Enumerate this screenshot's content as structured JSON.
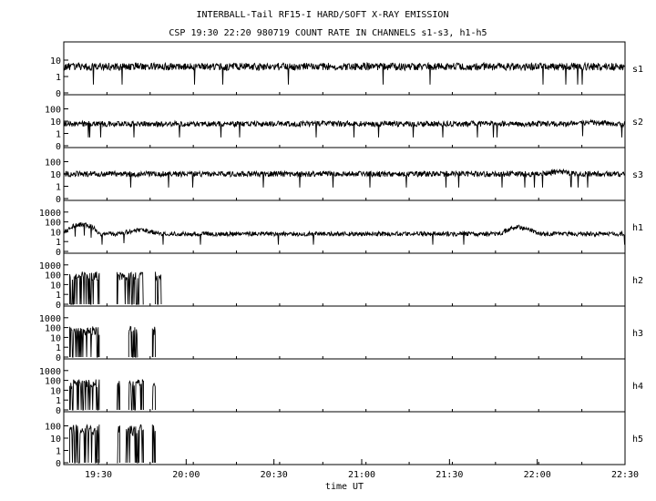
{
  "chart_data": {
    "type": "line",
    "title": "INTERBALL-Tail RF15-I HARD/SOFT X-RAY EMISSION",
    "subtitle": "CSP 19:30 22:20 980719  COUNT RATE IN CHANNELS s1-s3, h1-h5",
    "xlabel": "time UT",
    "x_ticks": [
      "19:30",
      "20:00",
      "20:30",
      "21:00",
      "21:30",
      "22:00",
      "22:30"
    ],
    "x_range_minutes": [
      1160,
      1350
    ],
    "y_scale": "log",
    "legend": "none",
    "grid": false,
    "line_color": "#000000",
    "series": [
      {
        "name": "s1",
        "y_ticks": [
          "0",
          "1",
          "10"
        ],
        "baseline": 4.0,
        "segments": [
          [
            1160,
            1350
          ]
        ],
        "bursts": []
      },
      {
        "name": "s2",
        "y_ticks": [
          "0",
          "1",
          "10",
          "100"
        ],
        "baseline": 6.0,
        "segments": [
          [
            1160,
            1350
          ]
        ],
        "bursts": [
          [
            1330,
            1345,
            8
          ]
        ]
      },
      {
        "name": "s3",
        "y_ticks": [
          "0",
          "1",
          "10",
          "100"
        ],
        "baseline": 10.0,
        "segments": [
          [
            1160,
            1350
          ]
        ],
        "bursts": [
          [
            1322,
            1333,
            16
          ]
        ]
      },
      {
        "name": "h1",
        "y_ticks": [
          "0",
          "1",
          "10",
          "100",
          "1000"
        ],
        "baseline": 6.0,
        "segments": [
          [
            1160,
            1350
          ]
        ],
        "bursts": [
          [
            1160,
            1172,
            60
          ],
          [
            1178,
            1193,
            14
          ],
          [
            1308,
            1320,
            30
          ]
        ]
      },
      {
        "name": "h2",
        "y_ticks": [
          "0",
          "1",
          "10",
          "100",
          "1000"
        ],
        "baseline": 50.0,
        "segments": [
          [
            1162,
            1172
          ],
          [
            1178,
            1187
          ],
          [
            1191,
            1193
          ]
        ],
        "bursts": []
      },
      {
        "name": "h3",
        "y_ticks": [
          "0",
          "1",
          "10",
          "100",
          "1000"
        ],
        "baseline": 30.0,
        "segments": [
          [
            1162,
            1172
          ],
          [
            1182,
            1185
          ],
          [
            1190,
            1191
          ]
        ],
        "bursts": []
      },
      {
        "name": "h4",
        "y_ticks": [
          "0",
          "1",
          "10",
          "100",
          "1000"
        ],
        "baseline": 30.0,
        "segments": [
          [
            1162,
            1172
          ],
          [
            1178,
            1179
          ],
          [
            1182,
            1187
          ],
          [
            1190,
            1191
          ]
        ],
        "bursts": []
      },
      {
        "name": "h5",
        "y_ticks": [
          "0",
          "1",
          "10",
          "100"
        ],
        "baseline": 30.0,
        "segments": [
          [
            1162,
            1172
          ],
          [
            1178,
            1179
          ],
          [
            1181,
            1187
          ],
          [
            1190,
            1191
          ]
        ],
        "bursts": []
      }
    ]
  }
}
